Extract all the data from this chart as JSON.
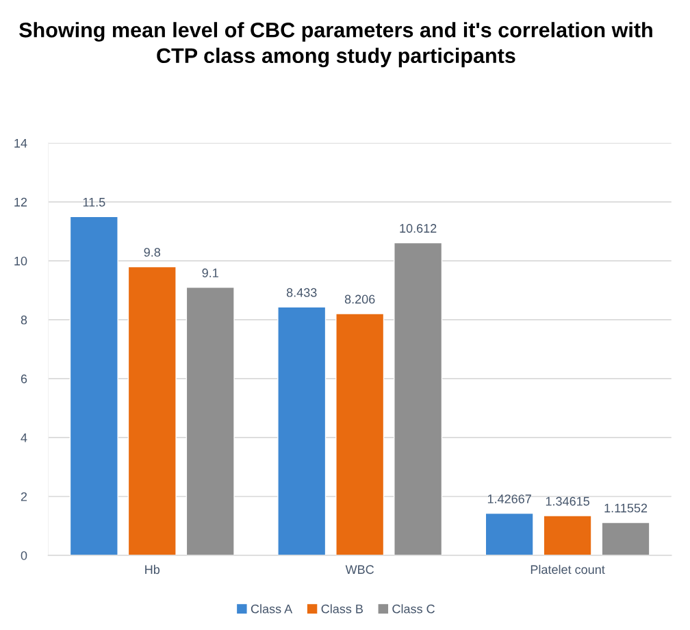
{
  "chart_data": {
    "type": "bar",
    "title": "Showing mean level of CBC parameters and it's correlation with CTP class among study participants",
    "categories": [
      "Hb",
      "WBC",
      "Platelet count"
    ],
    "series": [
      {
        "name": "Class A",
        "color": "#3d87d2",
        "values": [
          11.5,
          8.433,
          1.42667
        ]
      },
      {
        "name": "Class B",
        "color": "#e96b10",
        "values": [
          9.8,
          8.206,
          1.34615
        ]
      },
      {
        "name": "Class C",
        "color": "#8f8f8f",
        "values": [
          9.1,
          10.612,
          1.11552
        ]
      }
    ],
    "ylim": [
      0,
      14
    ],
    "yticks": [
      0,
      2,
      4,
      6,
      8,
      10,
      12,
      14
    ],
    "grid": "y",
    "legend": "bottom",
    "data_labels": true
  }
}
